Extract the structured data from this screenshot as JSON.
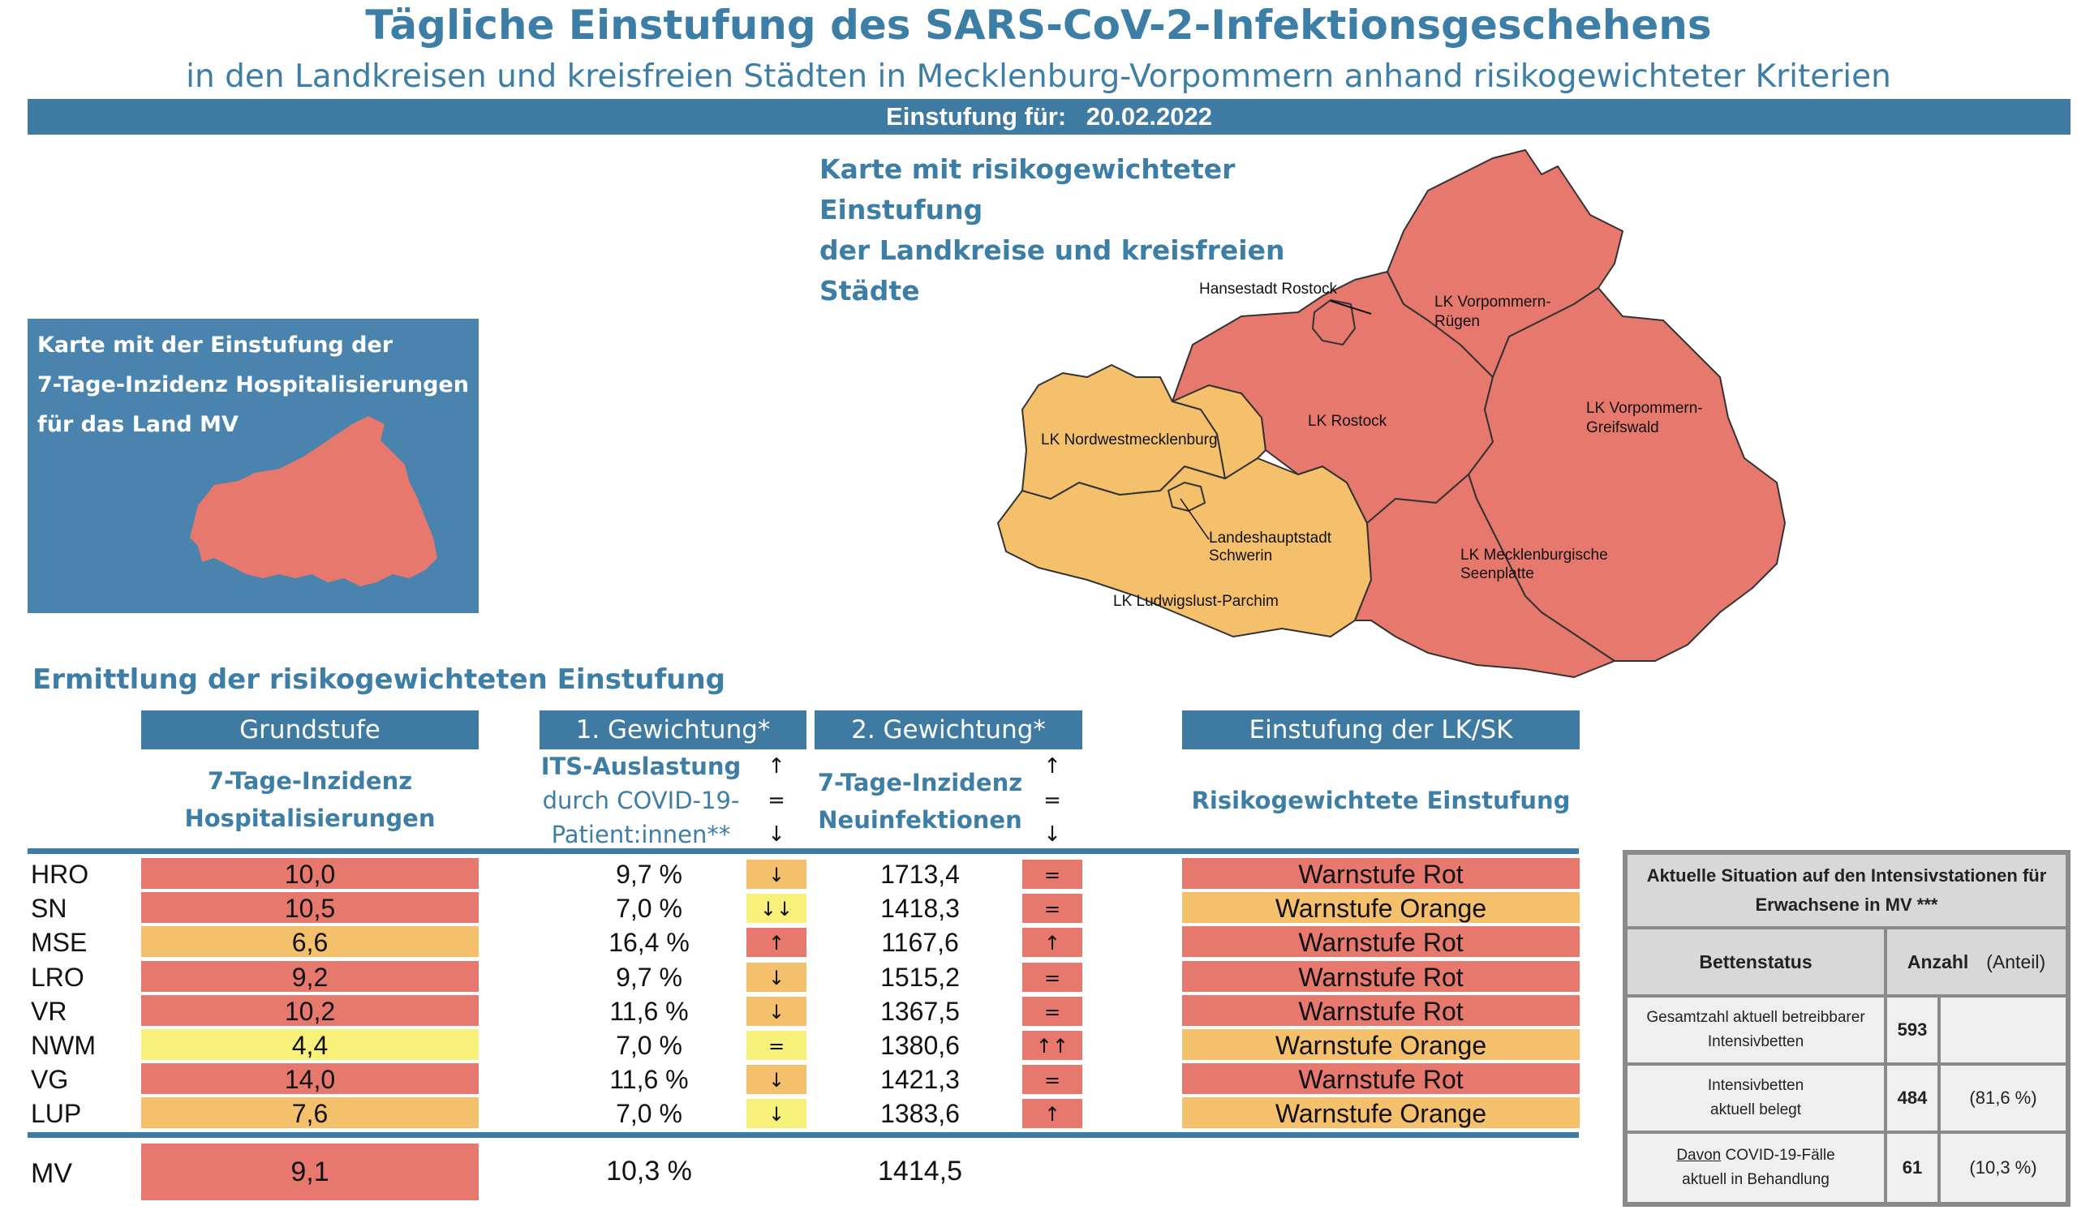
{
  "header": {
    "title": "Tägliche Einstufung des SARS-CoV-2-Infektionsgeschehens",
    "subtitle": "in den Landkreisen und kreisfreien Städten in Mecklenburg-Vorpommern anhand risikogewichteter Kriterien",
    "date_label": "Einstufung für:",
    "date_value": "20.02.2022"
  },
  "map": {
    "heading_line1": "Karte mit risikogewichteter Einstufung",
    "heading_line2": "der Landkreise und kreisfreien Städte",
    "labels": {
      "hro": "Hansestadt Rostock",
      "vr_1": "LK Vorpommern-",
      "vr_2": "Rügen",
      "nwm": "LK Nordwestmecklenburg",
      "lro": "LK Rostock",
      "vg_1": "LK Vorpommern-",
      "vg_2": "Greifswald",
      "sn_1": "Landeshauptstadt",
      "sn_2": "Schwerin",
      "mse_1": "LK Mecklenburgische",
      "mse_2": "Seenplatte",
      "lup": "LK Ludwigslust-Parchim"
    },
    "colors": {
      "rot": "#e6786d",
      "orange": "#f4c06b"
    }
  },
  "inset": {
    "line1": "Karte mit der Einstufung der",
    "line2": "7-Tage-Inzidenz Hospitalisierungen",
    "line3": "für das Land MV",
    "color": "#4a84ae",
    "map_color": "#e6786d"
  },
  "calc": {
    "heading": "Ermittlung der risikogewichteten Einstufung",
    "col_grundstufe": "Grundstufe",
    "col_g1": "1. Gewichtung*",
    "col_g2": "2. Gewichtung*",
    "col_einstufung": "Einstufung der LK/SK",
    "sub_grund_1": "7-Tage-Inzidenz",
    "sub_grund_2": "Hospitalisierungen",
    "sub_its_1": "ITS-Auslastung",
    "sub_its_2": "durch COVID-19-",
    "sub_its_3": "Patient:innen**",
    "sub_inz_1": "7-Tage-Inzidenz",
    "sub_inz_2": "Neuinfektionen",
    "sub_risk": "Risikogewichtete Einstufung",
    "legend_up": "↑",
    "legend_eq": "=",
    "legend_down": "↓"
  },
  "rows": [
    {
      "code": "HRO",
      "grund": "10,0",
      "grund_color": "red",
      "its": "9,7 %",
      "its_arrow": "↓",
      "its_color": "orange",
      "inz": "1713,4",
      "inz_arrow": "=",
      "stufe": "Warnstufe Rot",
      "stufe_color": "red"
    },
    {
      "code": "SN",
      "grund": "10,5",
      "grund_color": "red",
      "its": "7,0 %",
      "its_arrow": "↓↓",
      "its_color": "yellow",
      "inz": "1418,3",
      "inz_arrow": "=",
      "stufe": "Warnstufe Orange",
      "stufe_color": "orange"
    },
    {
      "code": "MSE",
      "grund": "6,6",
      "grund_color": "orange",
      "its": "16,4 %",
      "its_arrow": "↑",
      "its_color": "red",
      "inz": "1167,6",
      "inz_arrow": "↑",
      "stufe": "Warnstufe Rot",
      "stufe_color": "red"
    },
    {
      "code": "LRO",
      "grund": "9,2",
      "grund_color": "red",
      "its": "9,7 %",
      "its_arrow": "↓",
      "its_color": "orange",
      "inz": "1515,2",
      "inz_arrow": "=",
      "stufe": "Warnstufe Rot",
      "stufe_color": "red"
    },
    {
      "code": "VR",
      "grund": "10,2",
      "grund_color": "red",
      "its": "11,6 %",
      "its_arrow": "↓",
      "its_color": "orange",
      "inz": "1367,5",
      "inz_arrow": "=",
      "stufe": "Warnstufe Rot",
      "stufe_color": "red"
    },
    {
      "code": "NWM",
      "grund": "4,4",
      "grund_color": "yellow",
      "its": "7,0 %",
      "its_arrow": "=",
      "its_color": "yellow",
      "inz": "1380,6",
      "inz_arrow": "↑↑",
      "stufe": "Warnstufe Orange",
      "stufe_color": "orange"
    },
    {
      "code": "VG",
      "grund": "14,0",
      "grund_color": "red",
      "its": "11,6 %",
      "its_arrow": "↓",
      "its_color": "orange",
      "inz": "1421,3",
      "inz_arrow": "=",
      "stufe": "Warnstufe Rot",
      "stufe_color": "red"
    },
    {
      "code": "LUP",
      "grund": "7,6",
      "grund_color": "orange",
      "its": "7,0 %",
      "its_arrow": "↓",
      "its_color": "yellow",
      "inz": "1383,6",
      "inz_arrow": "↑",
      "stufe": "Warnstufe Orange",
      "stufe_color": "orange"
    }
  ],
  "total": {
    "code": "MV",
    "grund": "9,1",
    "its": "10,3 %",
    "inz": "1414,5"
  },
  "icu": {
    "title_1": "Aktuelle Situation auf den Intensivstationen für",
    "title_2": "Erwachsene in MV ***",
    "col_status": "Bettenstatus",
    "col_anzahl": "Anzahl",
    "col_anteil": "(Anteil)",
    "row1_label_1": "Gesamtzahl aktuell betreibbarer",
    "row1_label_2": "Intensivbetten",
    "row1_anzahl": "593",
    "row1_anteil": "",
    "row2_label_1": "Intensivbetten",
    "row2_label_2": "aktuell belegt",
    "row2_anzahl": "484",
    "row2_anteil": "(81,6 %)",
    "row3_label_1a": "Davon",
    "row3_label_1b": " COVID-19-Fälle",
    "row3_label_2": "aktuell in Behandlung",
    "row3_anzahl": "61",
    "row3_anteil": "(10,3 %)"
  },
  "colors": {
    "red": "#e6786d",
    "orange": "#f4c06b",
    "yellow": "#f7f07a",
    "blue": "#3f7aa3"
  }
}
